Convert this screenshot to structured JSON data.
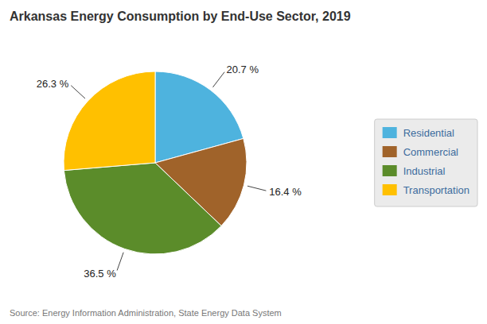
{
  "chart_data": {
    "type": "pie",
    "title": "Arkansas Energy Consumption by End-Use Sector, 2019",
    "categories": [
      "Residential",
      "Commercial",
      "Industrial",
      "Transportation"
    ],
    "values": [
      20.7,
      16.4,
      36.5,
      26.3
    ],
    "value_labels": [
      "20.7 %",
      "16.4 %",
      "36.5 %",
      "26.3 %"
    ],
    "colors": [
      "#4EB3DE",
      "#A0632A",
      "#5B8C2A",
      "#FFC000"
    ],
    "data_labels": true,
    "legend": "right",
    "annotations": [
      "Source: Energy Information Administration, State Energy Data System"
    ]
  }
}
